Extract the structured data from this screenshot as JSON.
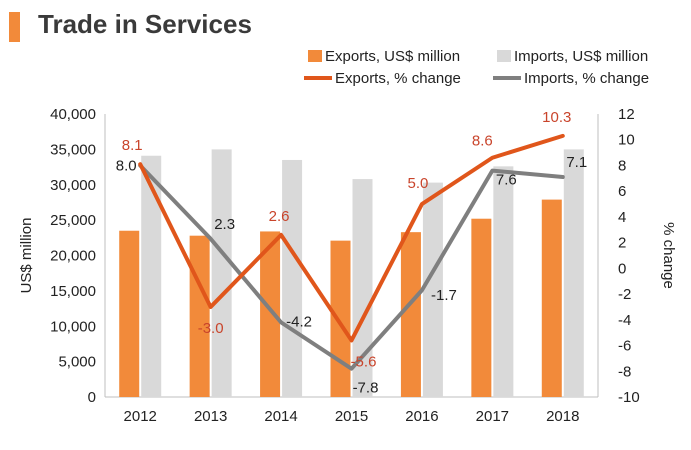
{
  "title": "Trade in Services",
  "chart_data": {
    "type": "bar",
    "title": "Trade in Services",
    "categories": [
      "2012",
      "2013",
      "2014",
      "2015",
      "2016",
      "2017",
      "2018"
    ],
    "series": [
      {
        "name": "Exports, US$ million",
        "type": "bar",
        "axis": "left",
        "color": "#f28a3a",
        "values": [
          23500,
          22800,
          23400,
          22100,
          23300,
          25200,
          27900
        ]
      },
      {
        "name": "Imports, US$ million",
        "type": "bar",
        "axis": "left",
        "color": "#d9d9d9",
        "values": [
          34100,
          35000,
          33500,
          30800,
          30300,
          32600,
          35000
        ]
      },
      {
        "name": "Exports, % change",
        "type": "line",
        "axis": "right",
        "color": "#e0561b",
        "values": [
          8.1,
          -3.0,
          2.6,
          -5.6,
          5.0,
          8.6,
          10.3
        ],
        "labels": [
          "8.1",
          "-3.0",
          "2.6",
          "-5.6",
          "5.0",
          "8.6",
          "10.3"
        ]
      },
      {
        "name": "Imports, % change",
        "type": "line",
        "axis": "right",
        "color": "#7f7f7f",
        "values": [
          8.0,
          2.3,
          -4.2,
          -7.8,
          -1.7,
          7.6,
          7.1
        ],
        "labels": [
          "8.0",
          "2.3",
          "-4.2",
          "-7.8",
          "-1.7",
          "7.6",
          "7.1"
        ]
      }
    ],
    "ylabel": "US$ million",
    "y2label": "% change",
    "ylim": [
      0,
      40000
    ],
    "y2lim": [
      -10,
      12
    ],
    "yticks": [
      "0",
      "5,000",
      "10,000",
      "15,000",
      "20,000",
      "25,000",
      "30,000",
      "35,000",
      "40,000"
    ],
    "y2ticks": [
      "-10",
      "-8",
      "-6",
      "-4",
      "-2",
      "0",
      "2",
      "4",
      "6",
      "8",
      "10",
      "12"
    ],
    "y2tick_values": [
      -10,
      -8,
      -6,
      -4,
      -2,
      0,
      2,
      4,
      6,
      8,
      10,
      12
    ],
    "legend_placement": "top",
    "grid": false
  }
}
